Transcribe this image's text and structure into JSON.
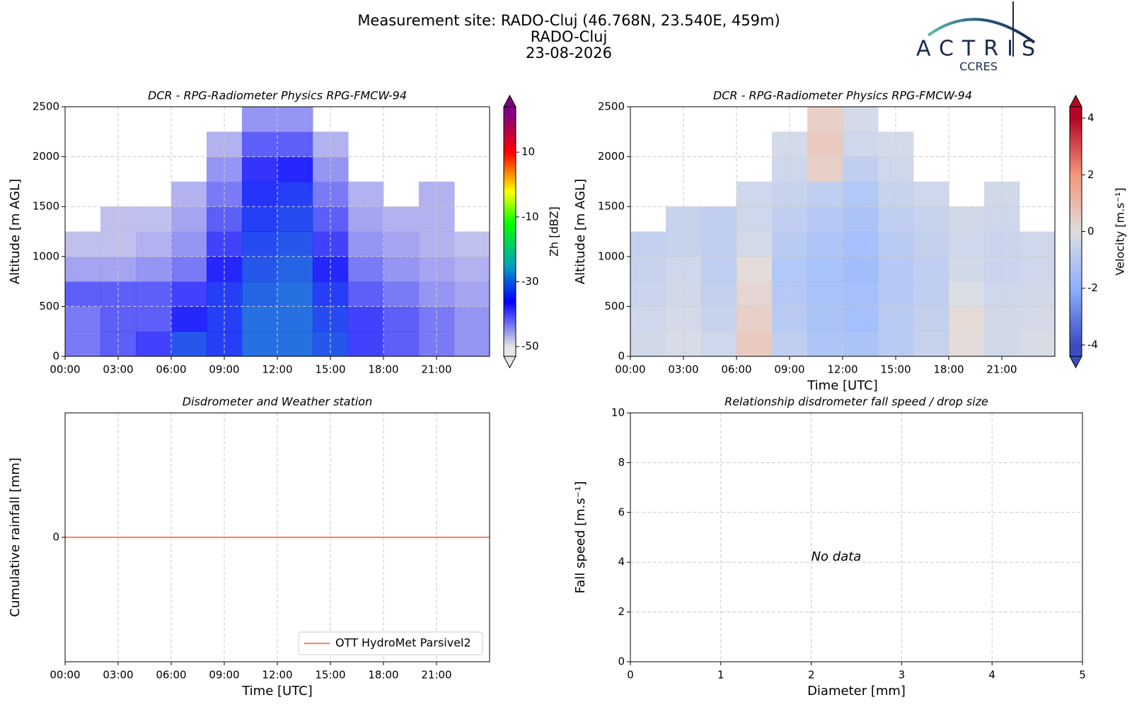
{
  "header": {
    "title": "Measurement site: RADO-Cluj (46.768N, 23.540E, 459m)",
    "subtitle": "RADO-Cluj",
    "date": "23-08-2026"
  },
  "logo": {
    "name": "ACTRIS",
    "subtitle": "CCRES"
  },
  "chart_data": [
    {
      "type": "heatmap",
      "title": "DCR - RPG-Radiometer Physics RPG-FMCW-94",
      "ylabel": "Altitude [m AGL]",
      "x": [
        0,
        2,
        4,
        6,
        8,
        10,
        12,
        14,
        16,
        18,
        20,
        22,
        24
      ],
      "y": [
        0,
        250,
        500,
        750,
        1000,
        1250,
        1500,
        1750,
        2000,
        2250,
        2500
      ],
      "z": [
        [
          -42,
          -40,
          -38,
          -32,
          -34,
          -30,
          -30,
          -32,
          -38,
          -40,
          -42,
          -44
        ],
        [
          -42,
          -40,
          -40,
          -36,
          -34,
          -30,
          -30,
          -33,
          -38,
          -40,
          -42,
          -44
        ],
        [
          -40,
          -40,
          -40,
          -38,
          -34,
          -31,
          -30,
          -34,
          -40,
          -42,
          -44,
          -45
        ],
        [
          -45,
          -45,
          -44,
          -42,
          -36,
          -32,
          -31,
          -36,
          -42,
          -44,
          -45,
          -46
        ],
        [
          -47,
          -47,
          -46,
          -44,
          -38,
          -33,
          -32,
          -38,
          -44,
          -45,
          -46,
          -47
        ],
        [
          null,
          -47,
          -47,
          -45,
          -40,
          -34,
          -33,
          -40,
          -45,
          -46,
          -46,
          null
        ],
        [
          null,
          null,
          null,
          -46,
          -42,
          -35,
          -34,
          -42,
          -46,
          null,
          -46,
          null
        ],
        [
          null,
          null,
          null,
          null,
          -44,
          -37,
          -36,
          -44,
          null,
          null,
          null,
          null
        ],
        [
          null,
          null,
          null,
          null,
          -46,
          -40,
          -40,
          -46,
          null,
          null,
          null,
          null
        ],
        [
          null,
          null,
          null,
          null,
          null,
          -44,
          -44,
          null,
          null,
          null,
          null,
          null
        ]
      ],
      "xlim": [
        0,
        24
      ],
      "xticks": [
        {
          "value": 0,
          "label": "00:00"
        },
        {
          "value": 3,
          "label": "03:00"
        },
        {
          "value": 6,
          "label": "06:00"
        },
        {
          "value": 9,
          "label": "09:00"
        },
        {
          "value": 12,
          "label": "12:00"
        },
        {
          "value": 15,
          "label": "15:00"
        },
        {
          "value": 18,
          "label": "18:00"
        },
        {
          "value": 21,
          "label": "21:00"
        }
      ],
      "ylim": [
        0,
        2500
      ],
      "yticks": [
        0,
        500,
        1000,
        1500,
        2000,
        2500
      ],
      "grid": true,
      "colorbar": {
        "label": "Zh [dBZ]",
        "lim": [
          -53,
          24
        ],
        "ticks": [
          -50,
          -30,
          -10,
          10
        ],
        "extend": "both",
        "colormap": [
          [
            -50,
            "#e6e6e6"
          ],
          [
            -36,
            "#0000ff"
          ],
          [
            -25,
            "#00a0c0"
          ],
          [
            -12,
            "#00ff00"
          ],
          [
            -2,
            "#ffff00"
          ],
          [
            10,
            "#ff0000"
          ],
          [
            22,
            "#800080"
          ]
        ]
      }
    },
    {
      "type": "heatmap",
      "title": "DCR - RPG-Radiometer Physics RPG-FMCW-94",
      "ylabel": "Altitude [m AGL]",
      "xlabel": "Time [UTC]",
      "x": [
        0,
        2,
        4,
        6,
        8,
        10,
        12,
        14,
        16,
        18,
        20,
        22,
        24
      ],
      "y": [
        0,
        250,
        500,
        750,
        1000,
        1250,
        1500,
        1750,
        2000,
        2250,
        2500
      ],
      "z": [
        [
          -0.5,
          -0.3,
          -0.6,
          0.8,
          -1.0,
          -1.5,
          -1.6,
          -1.2,
          -0.8,
          0.2,
          -0.5,
          -0.3
        ],
        [
          -0.6,
          -0.4,
          -0.8,
          0.6,
          -1.2,
          -1.6,
          -1.8,
          -1.2,
          -0.9,
          0.3,
          -0.5,
          -0.4
        ],
        [
          -0.7,
          -0.5,
          -0.9,
          0.4,
          -1.3,
          -1.7,
          -1.8,
          -1.3,
          -1.0,
          -0.2,
          -0.6,
          -0.5
        ],
        [
          -0.8,
          -0.6,
          -1.0,
          0.2,
          -1.4,
          -1.7,
          -1.9,
          -1.3,
          -1.0,
          -0.5,
          -0.7,
          -0.6
        ],
        [
          -0.9,
          -0.8,
          -1.0,
          -0.4,
          -1.2,
          -1.5,
          -1.8,
          -1.2,
          -0.9,
          -0.6,
          -0.7,
          -0.6
        ],
        [
          null,
          -0.8,
          -1.0,
          -0.6,
          -1.0,
          -1.3,
          -1.6,
          -1.0,
          -0.8,
          -0.5,
          -0.6,
          null
        ],
        [
          null,
          null,
          null,
          -0.6,
          -0.8,
          -1.0,
          -1.4,
          -0.8,
          -0.6,
          null,
          -0.5,
          null
        ],
        [
          null,
          null,
          null,
          null,
          -0.6,
          0.6,
          -1.0,
          -0.6,
          null,
          null,
          null,
          null
        ],
        [
          null,
          null,
          null,
          null,
          -0.4,
          0.8,
          -0.6,
          -0.4,
          null,
          null,
          null,
          null
        ],
        [
          null,
          null,
          null,
          null,
          null,
          0.6,
          -0.4,
          null,
          null,
          null,
          null,
          null
        ]
      ],
      "xlim": [
        0,
        24
      ],
      "xticks": [
        {
          "value": 0,
          "label": "00:00"
        },
        {
          "value": 3,
          "label": "03:00"
        },
        {
          "value": 6,
          "label": "06:00"
        },
        {
          "value": 9,
          "label": "09:00"
        },
        {
          "value": 12,
          "label": "12:00"
        },
        {
          "value": 15,
          "label": "15:00"
        },
        {
          "value": 18,
          "label": "18:00"
        },
        {
          "value": 21,
          "label": "21:00"
        }
      ],
      "ylim": [
        0,
        2500
      ],
      "yticks": [
        0,
        500,
        1000,
        1500,
        2000,
        2500
      ],
      "grid": true,
      "colorbar": {
        "label": "Velocity [m.s⁻¹]",
        "lim": [
          -4.4,
          4.4
        ],
        "ticks": [
          -4,
          -2,
          0,
          2,
          4
        ],
        "extend": "both",
        "colormap": [
          [
            -4,
            "#3b4cc0"
          ],
          [
            -2,
            "#8db0fe"
          ],
          [
            0,
            "#dddddd"
          ],
          [
            2,
            "#f4987a"
          ],
          [
            4,
            "#b40426"
          ]
        ]
      }
    },
    {
      "type": "line",
      "title": "Disdrometer and Weather station",
      "ylabel": "Cumulative rainfall [mm]",
      "xlabel": "Time [UTC]",
      "x": [
        0,
        24
      ],
      "series": [
        {
          "name": "OTT HydroMet Parsivel2",
          "color": "#f0906a",
          "values": [
            0,
            0
          ]
        }
      ],
      "xlim": [
        0,
        24
      ],
      "xticks": [
        {
          "value": 0,
          "label": "00:00"
        },
        {
          "value": 3,
          "label": "03:00"
        },
        {
          "value": 6,
          "label": "06:00"
        },
        {
          "value": 9,
          "label": "09:00"
        },
        {
          "value": 12,
          "label": "12:00"
        },
        {
          "value": 15,
          "label": "15:00"
        },
        {
          "value": 18,
          "label": "18:00"
        },
        {
          "value": 21,
          "label": "21:00"
        }
      ],
      "ylim": [
        -1,
        1
      ],
      "yticks": [
        0
      ],
      "grid": true,
      "legend": "lower right"
    },
    {
      "type": "scatter",
      "title": "Relationship disdrometer fall speed / drop size",
      "ylabel": "Fall speed [m.s⁻¹]",
      "xlabel": "Diameter [mm]",
      "annotation": "No data",
      "xlim": [
        0,
        5
      ],
      "xticks": [
        0,
        1,
        2,
        3,
        4,
        5
      ],
      "ylim": [
        0,
        10
      ],
      "yticks": [
        0,
        2,
        4,
        6,
        8,
        10
      ],
      "grid": true
    }
  ]
}
